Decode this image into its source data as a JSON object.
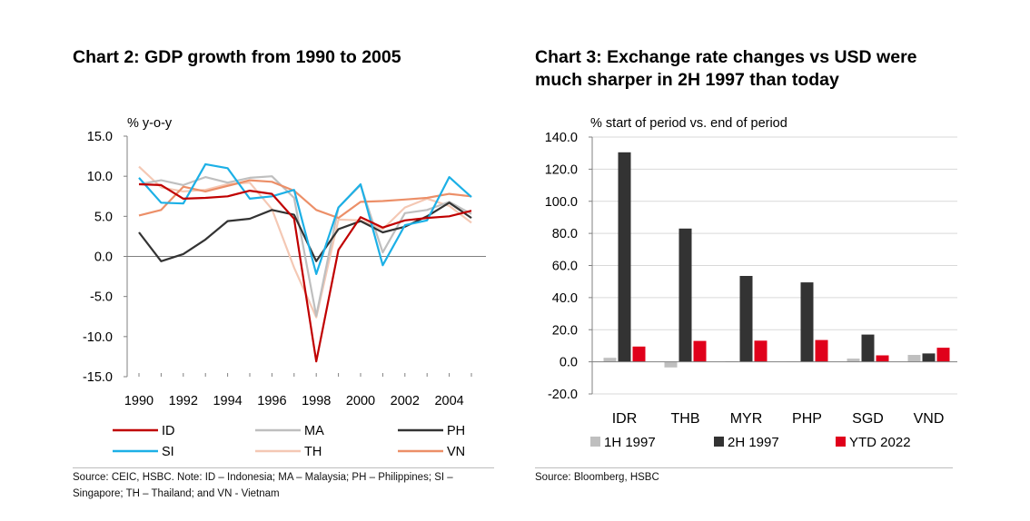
{
  "charts": [
    {
      "title": "Chart 2: GDP growth from 1990 to 2005",
      "source": "Source: CEIC, HSBC. Note: ID – Indonesia; MA – Malaysia; PH – Philippines; SI – Singapore; TH – Thailand; and VN - Vietnam"
    },
    {
      "title": "Chart 3: Exchange rate changes vs USD were much sharper in 2H 1997 than today",
      "source": "Source: Bloomberg, HSBC"
    }
  ],
  "chart_data": [
    {
      "type": "line",
      "title": "Chart 2: GDP growth from 1990 to 2005",
      "ylabel": "% y-o-y",
      "xlabel": "",
      "ylim": [
        -15,
        15
      ],
      "yticks": [
        "15.0",
        "10.0",
        "5.0",
        "0.0",
        "-5.0",
        "-10.0",
        "-15.0"
      ],
      "yticks_values": [
        15,
        10,
        5,
        0,
        -5,
        -10,
        -15
      ],
      "xlim": [
        1990,
        2005
      ],
      "xticks": [
        "1990",
        "1992",
        "1994",
        "1996",
        "1998",
        "2000",
        "2002",
        "2004"
      ],
      "grid": false,
      "legend": "bottom",
      "x": [
        1990,
        1991,
        1992,
        1993,
        1994,
        1995,
        1996,
        1997,
        1998,
        1999,
        2000,
        2001,
        2002,
        2003,
        2004,
        2005
      ],
      "series": [
        {
          "name": "ID",
          "color": "#c00000",
          "values": [
            9.0,
            8.9,
            7.2,
            7.3,
            7.5,
            8.2,
            7.8,
            4.7,
            -13.1,
            0.8,
            4.9,
            3.6,
            4.5,
            4.8,
            5.0,
            5.7
          ]
        },
        {
          "name": "MA",
          "color": "#bfbfbf",
          "values": [
            9.0,
            9.5,
            8.9,
            9.9,
            9.2,
            9.8,
            10.0,
            7.3,
            -7.4,
            6.1,
            8.9,
            0.5,
            5.4,
            5.8,
            6.8,
            5.3
          ]
        },
        {
          "name": "PH",
          "color": "#333333",
          "values": [
            3.0,
            -0.6,
            0.3,
            2.1,
            4.4,
            4.7,
            5.8,
            5.2,
            -0.6,
            3.4,
            4.4,
            3.0,
            3.7,
            5.0,
            6.7,
            4.8
          ]
        },
        {
          "name": "SI",
          "color": "#1cb0e6",
          "values": [
            9.8,
            6.7,
            6.6,
            11.5,
            11.0,
            7.2,
            7.5,
            8.3,
            -2.2,
            6.1,
            9.0,
            -1.1,
            3.9,
            4.5,
            9.9,
            7.4
          ]
        },
        {
          "name": "TH",
          "color": "#f4c8b4",
          "values": [
            11.2,
            8.6,
            8.1,
            8.3,
            9.0,
            9.2,
            5.9,
            -1.4,
            -7.6,
            4.6,
            4.5,
            3.4,
            6.1,
            7.2,
            6.3,
            4.2
          ]
        },
        {
          "name": "VN",
          "color": "#ec8f68",
          "values": [
            5.1,
            5.8,
            8.7,
            8.1,
            8.8,
            9.5,
            9.3,
            8.2,
            5.8,
            4.8,
            6.8,
            6.9,
            7.1,
            7.3,
            7.8,
            7.5
          ]
        }
      ]
    },
    {
      "type": "bar",
      "title": "Chart 3: Exchange rate changes vs USD were much sharper in 2H 1997 than today",
      "ylabel": "% start of period vs. end of period",
      "xlabel": "",
      "ylim": [
        -20,
        140
      ],
      "yticks": [
        "140.0",
        "120.0",
        "100.0",
        "80.0",
        "60.0",
        "40.0",
        "20.0",
        "0.0",
        "-20.0"
      ],
      "yticks_values": [
        140,
        120,
        100,
        80,
        60,
        40,
        20,
        0,
        -20
      ],
      "grid": true,
      "legend": "bottom",
      "categories": [
        "IDR",
        "THB",
        "MYR",
        "PHP",
        "SGD",
        "VND"
      ],
      "series": [
        {
          "name": "1H 1997",
          "color": "#bfbfbf",
          "values": [
            2.5,
            -3.5,
            0.3,
            0.2,
            2.0,
            4.3
          ]
        },
        {
          "name": "2H 1997",
          "color": "#333333",
          "values": [
            130.5,
            83.0,
            53.5,
            49.5,
            17.0,
            5.2
          ]
        },
        {
          "name": "YTD 2022",
          "color": "#e0001b",
          "values": [
            9.5,
            13.0,
            13.2,
            13.6,
            4.0,
            8.8
          ]
        }
      ]
    }
  ]
}
